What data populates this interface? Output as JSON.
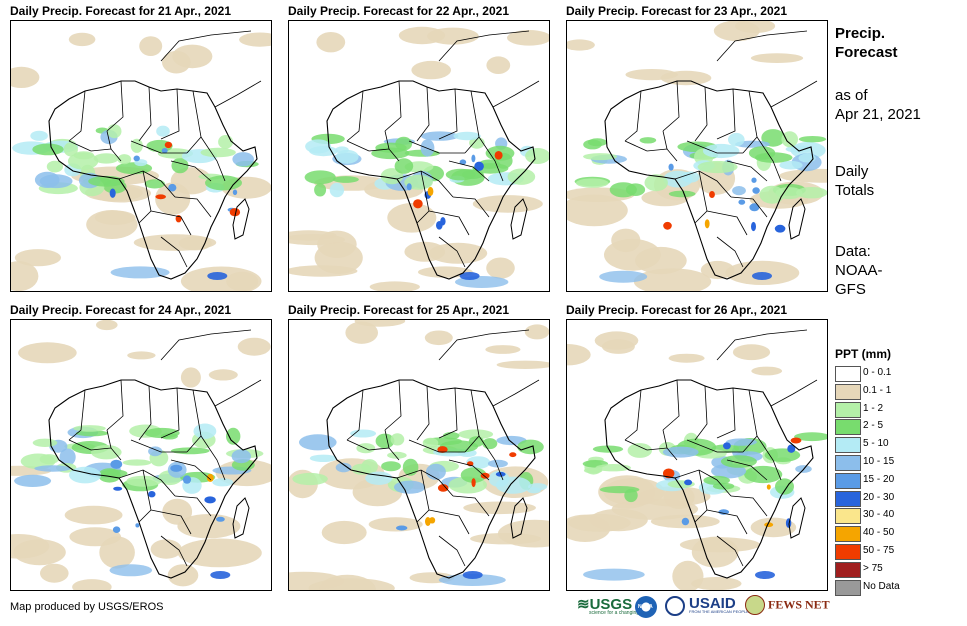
{
  "panels": [
    {
      "title": "Daily Precip. Forecast for 21 Apr., 2021"
    },
    {
      "title": "Daily Precip. Forecast for 22 Apr., 2021"
    },
    {
      "title": "Daily Precip. Forecast for 23 Apr., 2021"
    },
    {
      "title": "Daily Precip. Forecast for 24 Apr., 2021"
    },
    {
      "title": "Daily Precip. Forecast for 25 Apr., 2021"
    },
    {
      "title": "Daily Precip. Forecast for 26 Apr., 2021"
    }
  ],
  "side": {
    "heading_line1": "Precip.",
    "heading_line2": "Forecast",
    "asof_line1": "as of",
    "asof_line2": "Apr 21, 2021",
    "totals_line1": "Daily",
    "totals_line2": "Totals",
    "data_line1": "Data:",
    "data_line2": "NOAA-",
    "data_line3": "GFS"
  },
  "legend": {
    "title": "PPT (mm)",
    "items": [
      {
        "label": "0 - 0.1",
        "color": "#ffffff"
      },
      {
        "label": "0.1 - 1",
        "color": "#e6d7b9"
      },
      {
        "label": "1 - 2",
        "color": "#b4f0a8"
      },
      {
        "label": "2 - 5",
        "color": "#78dc6e"
      },
      {
        "label": "5 - 10",
        "color": "#b4ebf5"
      },
      {
        "label": "10 - 15",
        "color": "#8cbeeb"
      },
      {
        "label": "15 - 20",
        "color": "#5a9be6"
      },
      {
        "label": "20 - 30",
        "color": "#2864dc"
      },
      {
        "label": "30 - 40",
        "color": "#fae68c"
      },
      {
        "label": "40 - 50",
        "color": "#f5a500"
      },
      {
        "label": "50 - 75",
        "color": "#f03c00"
      },
      {
        "label": "> 75",
        "color": "#a01e1e"
      },
      {
        "label": "No Data",
        "color": "#999999"
      }
    ]
  },
  "credit": "Map produced by USGS/EROS",
  "logos": {
    "usgs": "USGS",
    "usgs_tagline": "science for a changing world",
    "noaa": "NOAA",
    "usaid": "USAID",
    "usaid_tagline": "FROM THE AMERICAN PEOPLE",
    "fewsnet": "FEWS NET"
  }
}
